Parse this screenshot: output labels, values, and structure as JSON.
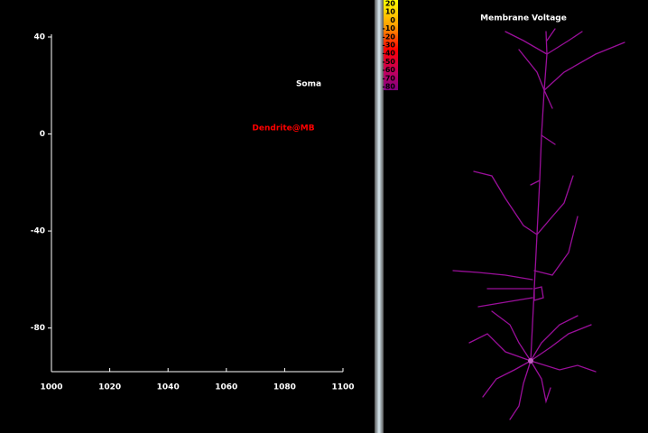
{
  "graph": {
    "xlim": [
      1000,
      1100
    ],
    "ylim": [
      -98,
      40
    ],
    "xticks": [
      1000,
      1020,
      1040,
      1060,
      1080,
      1100
    ],
    "yticks": [
      40,
      0,
      -40,
      -80
    ],
    "legend": [
      {
        "name": "Soma",
        "color": "#ffffff"
      },
      {
        "name": "Dendrite@MB",
        "color": "#ff0000"
      }
    ]
  },
  "shape_plot": {
    "title": "Membrane Voltage",
    "colorbar": [
      20,
      10,
      0,
      -10,
      -20,
      -30,
      -40,
      -50,
      -60,
      -70,
      -80
    ]
  }
}
